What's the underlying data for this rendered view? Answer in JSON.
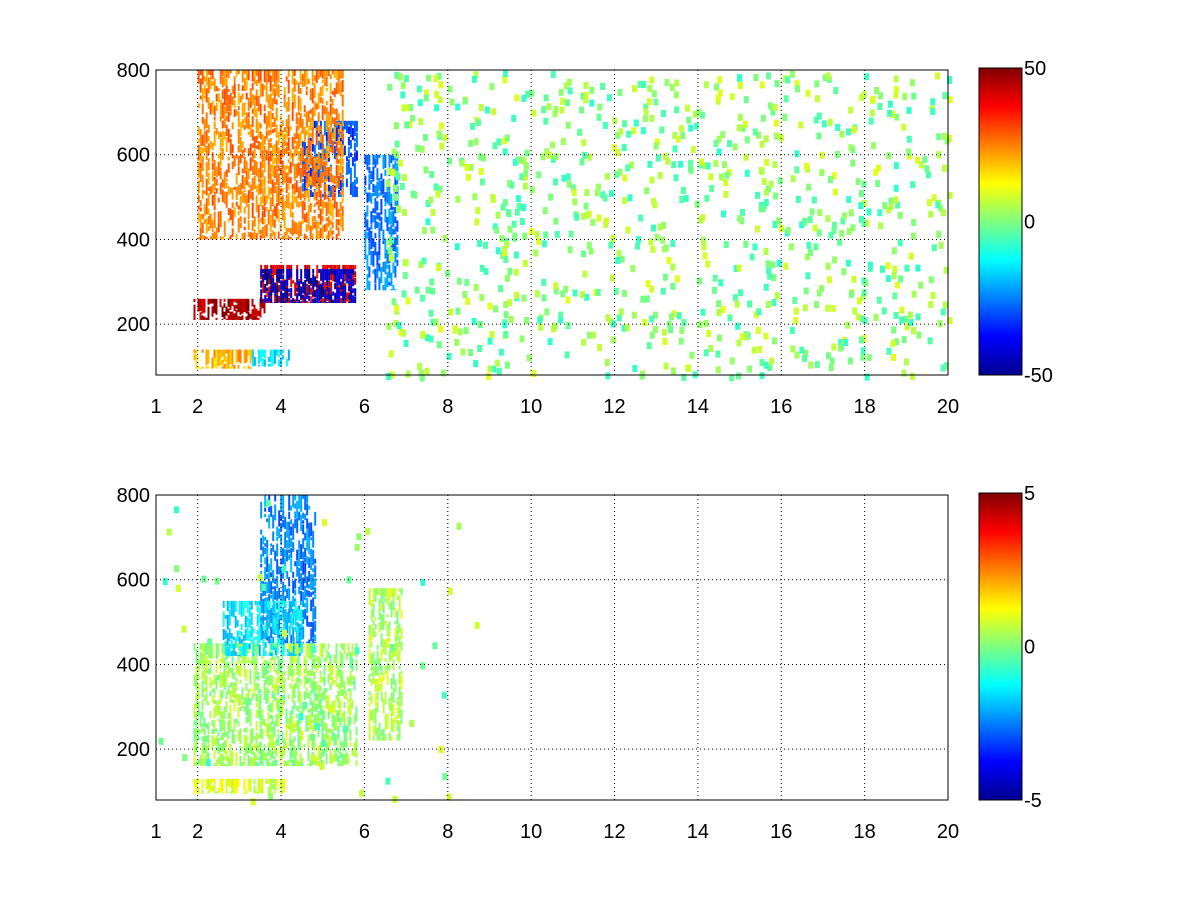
{
  "chart_data": [
    {
      "type": "heatmap",
      "title": "",
      "xlabel": "",
      "ylabel": "",
      "x_ticks": [
        "1",
        "2",
        "4",
        "6",
        "8",
        "10",
        "12",
        "14",
        "16",
        "18",
        "20"
      ],
      "x_tick_values": [
        1,
        2,
        4,
        6,
        8,
        10,
        12,
        14,
        16,
        18,
        20
      ],
      "y_ticks": [
        "200",
        "400",
        "600",
        "800"
      ],
      "y_tick_values": [
        200,
        400,
        600,
        800
      ],
      "xlim": [
        1,
        20
      ],
      "ylim": [
        80,
        800
      ],
      "grid": true,
      "colormap": "jet",
      "colorbar": {
        "min": -50,
        "max": 50,
        "ticks": [
          "50",
          "0",
          "-50"
        ],
        "tick_values": [
          50,
          0,
          -50
        ]
      },
      "features": [
        {
          "x": [
            1.9,
            3.6
          ],
          "y": [
            210,
            260
          ],
          "value": 45
        },
        {
          "x": [
            3.5,
            5.8
          ],
          "y": [
            250,
            340
          ],
          "value": 40
        },
        {
          "x": [
            3.5,
            5.8
          ],
          "y": [
            250,
            330
          ],
          "value": -45
        },
        {
          "x": [
            4.5,
            5.8
          ],
          "y": [
            500,
            680
          ],
          "value": -30
        },
        {
          "x": [
            6.0,
            6.8
          ],
          "y": [
            280,
            600
          ],
          "value": -25
        },
        {
          "x": [
            2.0,
            5.5
          ],
          "y": [
            400,
            800
          ],
          "value": 25
        },
        {
          "x": [
            1.9,
            3.3
          ],
          "y": [
            95,
            140
          ],
          "value": 20
        },
        {
          "x": [
            3.3,
            4.2
          ],
          "y": [
            100,
            140
          ],
          "value": -15
        }
      ]
    },
    {
      "type": "heatmap",
      "title": "",
      "xlabel": "",
      "ylabel": "",
      "x_ticks": [
        "1",
        "2",
        "4",
        "6",
        "8",
        "10",
        "12",
        "14",
        "16",
        "18",
        "20"
      ],
      "x_tick_values": [
        1,
        2,
        4,
        6,
        8,
        10,
        12,
        14,
        16,
        18,
        20
      ],
      "y_ticks": [
        "200",
        "400",
        "600",
        "800"
      ],
      "y_tick_values": [
        200,
        400,
        600,
        800
      ],
      "xlim": [
        1,
        20
      ],
      "ylim": [
        80,
        800
      ],
      "grid": true,
      "colormap": "jet",
      "colorbar": {
        "min": -5,
        "max": 5,
        "ticks": [
          "5",
          "0",
          "-5"
        ],
        "tick_values": [
          5,
          0,
          -5
        ]
      },
      "features": [
        {
          "x": [
            1.9,
            5.8
          ],
          "y": [
            160,
            450
          ],
          "value": 0.3
        },
        {
          "x": [
            3.5,
            4.8
          ],
          "y": [
            450,
            800
          ],
          "value": -2.5
        },
        {
          "x": [
            2.6,
            4.5
          ],
          "y": [
            420,
            550
          ],
          "value": -1.5
        },
        {
          "x": [
            6.1,
            6.9
          ],
          "y": [
            220,
            580
          ],
          "value": 0.5
        },
        {
          "x": [
            1.9,
            4.1
          ],
          "y": [
            95,
            130
          ],
          "value": 0.8
        }
      ]
    }
  ]
}
